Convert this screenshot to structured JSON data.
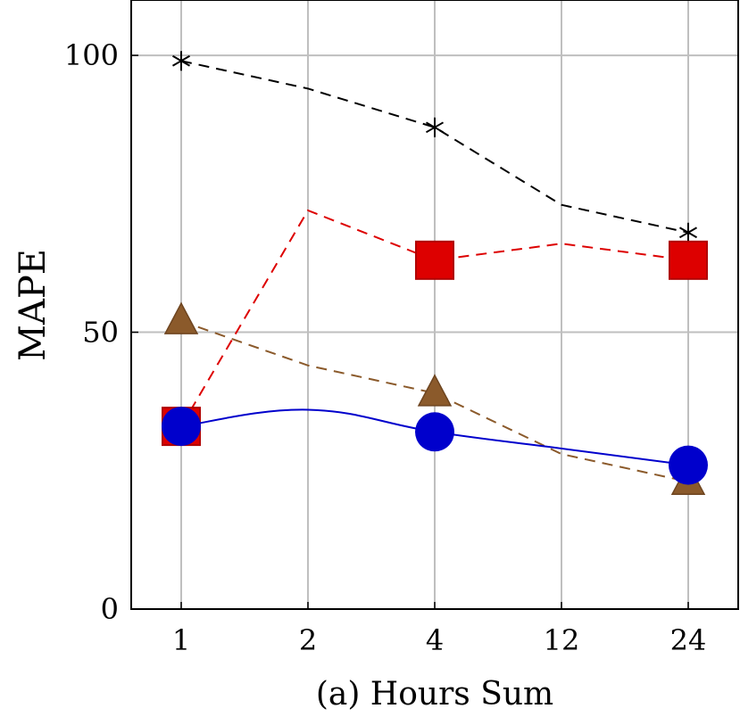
{
  "chart_data": {
    "type": "line",
    "categories": [
      "1",
      "2",
      "4",
      "12",
      "24"
    ],
    "ylim": [
      0,
      110
    ],
    "yticks": [
      0,
      50,
      100
    ],
    "ylabel": "MAPE",
    "caption": "(a) Hours Sum",
    "grid": true,
    "series": [
      {
        "color": "#000000",
        "dash": "12 8",
        "marker": "asterisk",
        "smooth": false,
        "marker_at": [
          0,
          2,
          4
        ],
        "values": [
          99,
          94,
          87,
          73,
          68
        ]
      },
      {
        "color": "#dd0000",
        "dash": "12 8",
        "marker": "square",
        "smooth": false,
        "marker_at": [
          0,
          2,
          4
        ],
        "values": [
          33,
          72,
          63,
          66,
          63
        ]
      },
      {
        "color": "#8b5a2b",
        "dash": "12 8",
        "marker": "triangle",
        "smooth": false,
        "marker_at": [
          0,
          2,
          4
        ],
        "values": [
          52,
          44,
          39,
          28,
          23
        ]
      },
      {
        "color": "#0000cc",
        "dash": "",
        "marker": "circle",
        "smooth": true,
        "marker_at": [
          0,
          2,
          4
        ],
        "values": [
          33,
          36,
          32,
          29,
          26
        ]
      }
    ]
  }
}
